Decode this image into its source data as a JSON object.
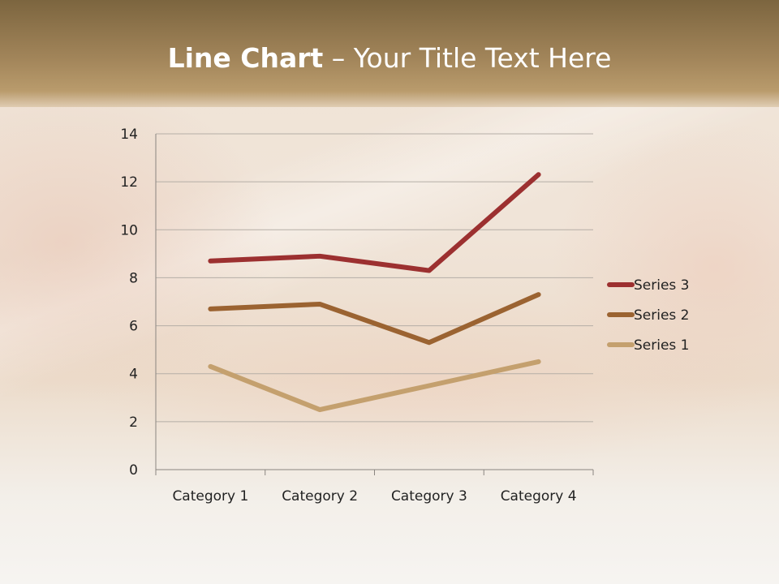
{
  "slide": {
    "title_bold": "Line Chart",
    "title_rest": " – Your Title Text Here"
  },
  "chart_data": {
    "type": "line",
    "stacked": true,
    "categories": [
      "Category 1",
      "Category 2",
      "Category 3",
      "Category 4"
    ],
    "series": [
      {
        "name": "Series 1",
        "values": [
          4.3,
          2.5,
          3.5,
          4.5
        ],
        "color": "#c4a06e"
      },
      {
        "name": "Series 2",
        "values": [
          2.4,
          4.4,
          1.8,
          2.8
        ],
        "color": "#9b6331"
      },
      {
        "name": "Series 3",
        "values": [
          2,
          2,
          3,
          5
        ],
        "color": "#9c3030"
      }
    ],
    "ylim": [
      0,
      14
    ],
    "yticks": [
      "0",
      "2",
      "4",
      "6",
      "8",
      "10",
      "12",
      "14"
    ],
    "grid": true,
    "legend": "right"
  }
}
